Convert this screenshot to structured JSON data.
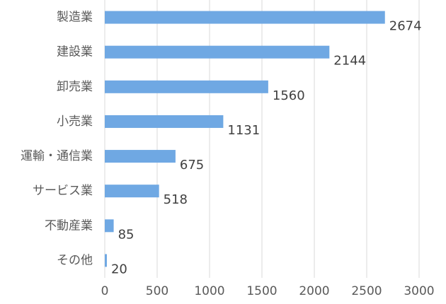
{
  "chart_data": {
    "type": "bar",
    "orientation": "horizontal",
    "categories": [
      "製造業",
      "建設業",
      "卸売業",
      "小売業",
      "運輸・通信業",
      "サービス業",
      "不動産業",
      "その他"
    ],
    "values": [
      2674,
      2144,
      1560,
      1131,
      675,
      518,
      85,
      20
    ],
    "color": "#6fa8e3",
    "xlim": [
      0,
      3000
    ],
    "xticks": [
      0,
      500,
      1000,
      1500,
      2000,
      2500,
      3000
    ],
    "grid": true
  }
}
